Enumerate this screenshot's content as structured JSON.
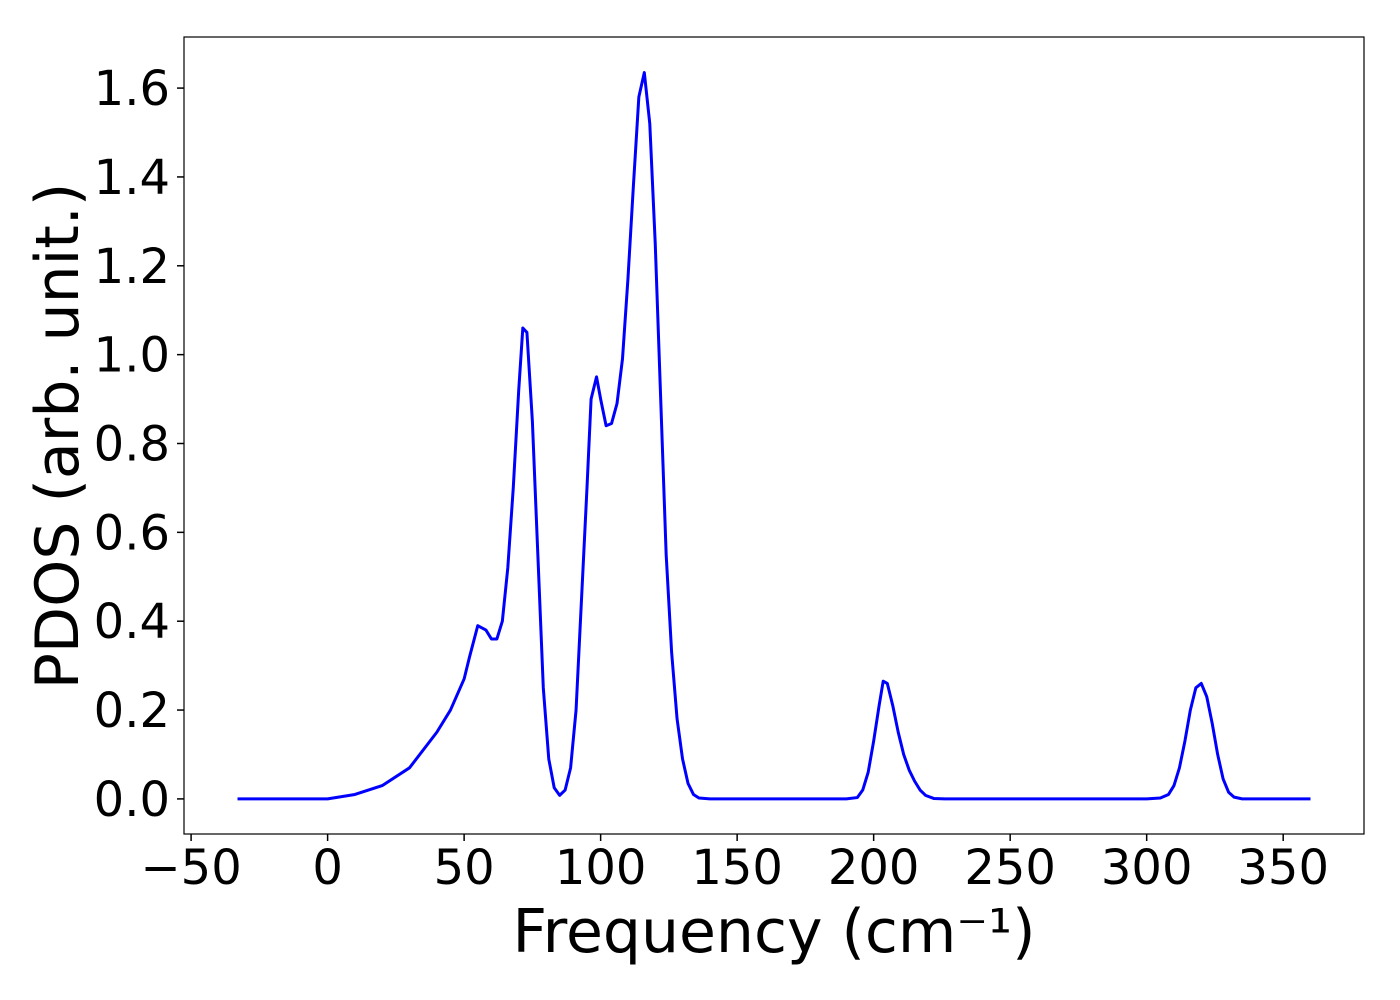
{
  "chart_data": {
    "type": "line",
    "xlabel": "Frequency (cm⁻¹)",
    "ylabel": "PDOS (arb. unit.)",
    "x": [
      -33,
      0,
      10,
      20,
      30,
      40,
      45,
      50,
      52,
      55,
      58,
      60,
      62,
      64,
      66,
      68,
      70,
      71.5,
      73,
      75,
      77,
      79,
      81,
      83,
      85,
      87,
      89,
      91,
      93,
      95,
      96.5,
      98.5,
      100,
      102,
      104,
      106,
      108,
      110,
      112,
      114,
      116,
      118,
      120,
      122,
      124,
      126,
      128,
      130,
      132,
      134,
      136,
      140,
      190,
      194,
      196,
      198,
      200,
      202,
      203.5,
      205,
      207,
      209,
      211,
      213,
      215,
      217,
      219,
      222,
      226,
      300,
      305,
      308,
      310,
      312,
      314,
      316,
      318,
      320,
      322,
      324,
      326,
      328,
      330,
      332,
      335,
      360
    ],
    "series": [
      {
        "name": "PDOS",
        "color": "#0000ff",
        "values": [
          0,
          0,
          0.01,
          0.03,
          0.07,
          0.15,
          0.2,
          0.27,
          0.32,
          0.39,
          0.38,
          0.36,
          0.36,
          0.4,
          0.52,
          0.7,
          0.92,
          1.06,
          1.05,
          0.85,
          0.55,
          0.25,
          0.09,
          0.025,
          0.008,
          0.02,
          0.07,
          0.2,
          0.45,
          0.7,
          0.9,
          0.95,
          0.9,
          0.84,
          0.845,
          0.89,
          0.99,
          1.17,
          1.38,
          1.58,
          1.635,
          1.52,
          1.25,
          0.9,
          0.55,
          0.33,
          0.18,
          0.09,
          0.035,
          0.01,
          0.002,
          0,
          0,
          0.003,
          0.02,
          0.06,
          0.13,
          0.21,
          0.265,
          0.26,
          0.21,
          0.15,
          0.1,
          0.065,
          0.04,
          0.02,
          0.008,
          0.001,
          0,
          0,
          0.002,
          0.01,
          0.03,
          0.07,
          0.13,
          0.2,
          0.25,
          0.26,
          0.23,
          0.17,
          0.1,
          0.045,
          0.015,
          0.004,
          0,
          0
        ]
      }
    ],
    "xlim": [
      -52.6,
      379.6
    ],
    "ylim": [
      -0.079,
      1.715
    ],
    "xticks": [
      {
        "value": -50,
        "label": "−50"
      },
      0,
      50,
      100,
      150,
      200,
      250,
      300,
      350
    ],
    "yticks": [
      {
        "value": 0,
        "label": "0.0"
      },
      0.2,
      0.4,
      0.6,
      0.8,
      {
        "value": 1,
        "label": "1.0"
      },
      1.2,
      1.4,
      1.6
    ],
    "grid": false
  }
}
